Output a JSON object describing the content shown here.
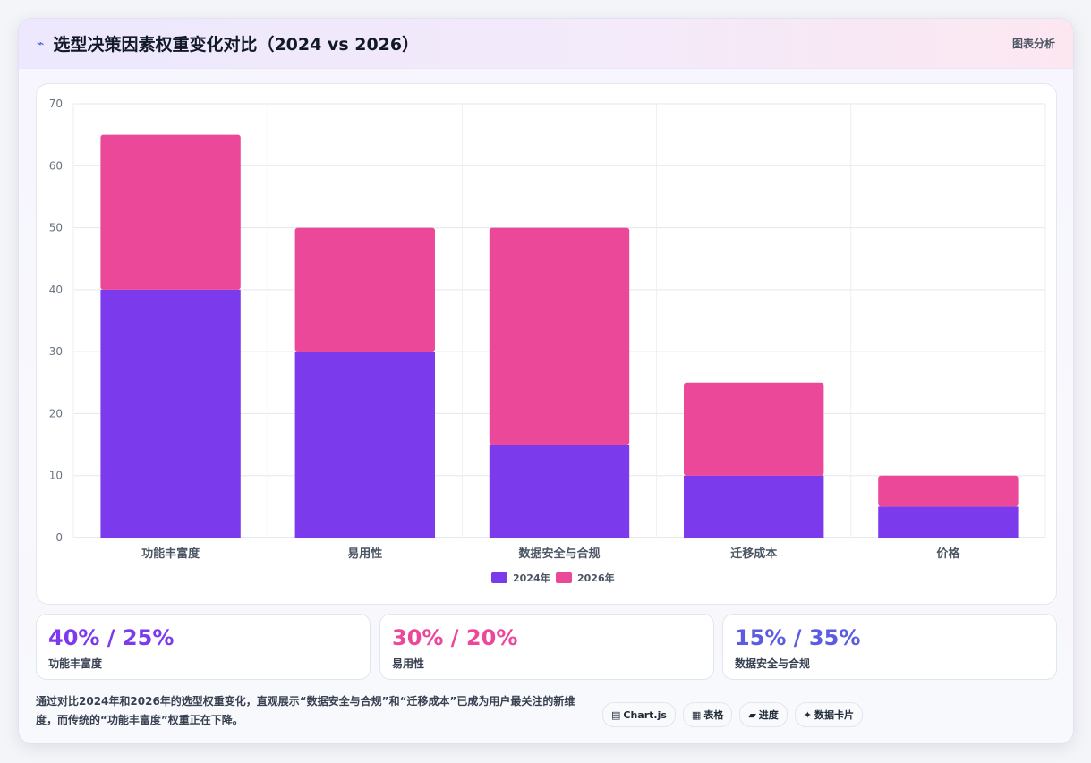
{
  "header": {
    "icon": "line-chart-icon",
    "title": "选型决策因素权重变化对比（2024 vs 2026）",
    "tag": "图表分析"
  },
  "chart_data": {
    "type": "bar",
    "stacked": true,
    "categories": [
      "功能丰富度",
      "易用性",
      "数据安全与合规",
      "迁移成本",
      "价格"
    ],
    "series": [
      {
        "name": "2024年",
        "color": "#7c3aed",
        "values": [
          40,
          30,
          15,
          10,
          5
        ]
      },
      {
        "name": "2026年",
        "color": "#ec4899",
        "values": [
          25,
          20,
          35,
          15,
          5
        ]
      }
    ],
    "y_ticks": [
      0,
      10,
      20,
      30,
      40,
      50,
      60,
      70
    ],
    "ylim": [
      0,
      70
    ],
    "grid": true,
    "legend_position": "bottom"
  },
  "stats": [
    {
      "value": "40% / 25%",
      "label": "功能丰富度",
      "color": "#7c3aed"
    },
    {
      "value": "30% / 20%",
      "label": "易用性",
      "color": "#ec4899"
    },
    {
      "value": "15% / 35%",
      "label": "数据安全与合规",
      "color": "#5b5ce0"
    }
  ],
  "footer": {
    "description": "通过对比2024年和2026年的选型权重变化，直观展示“数据安全与合规”和“迁移成本”已成为用户最关注的新维度，而传统的“功能丰富度”权重正在下降。",
    "chips": [
      {
        "icon": "chart-icon",
        "glyph": "▤",
        "label": "Chart.js"
      },
      {
        "icon": "table-icon",
        "glyph": "▦",
        "label": "表格"
      },
      {
        "icon": "progress-icon",
        "glyph": "▰",
        "label": "进度"
      },
      {
        "icon": "sparkle-icon",
        "glyph": "✦",
        "label": "数据卡片"
      }
    ]
  }
}
